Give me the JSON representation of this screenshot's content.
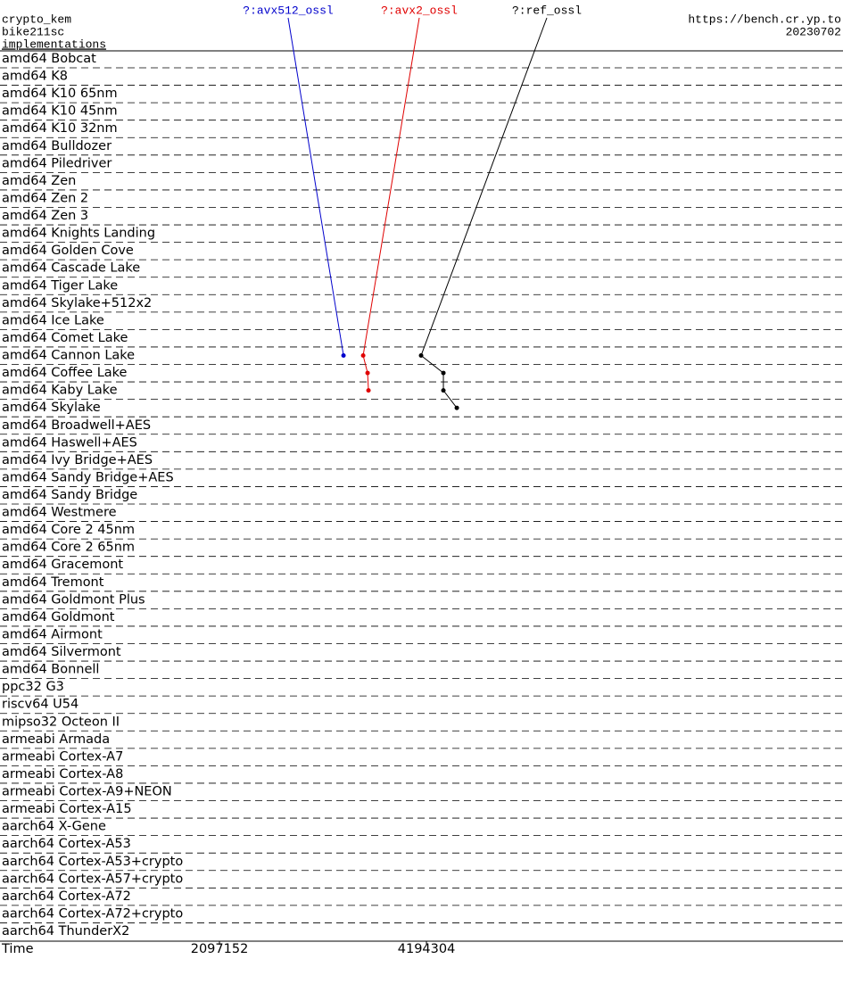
{
  "chart_data": {
    "type": "line",
    "header": [
      "crypto_kem",
      "bike211sc",
      "implementations"
    ],
    "site": "https://bench.cr.yp.to",
    "date": "20230702",
    "xlabel": "Time",
    "xlim": [
      0,
      8415000
    ],
    "xticks": [
      2097152,
      4194304
    ],
    "categories": [
      "amd64 Bobcat",
      "amd64 K8",
      "amd64 K10 65nm",
      "amd64 K10 45nm",
      "amd64 K10 32nm",
      "amd64 Bulldozer",
      "amd64 Piledriver",
      "amd64 Zen",
      "amd64 Zen 2",
      "amd64 Zen 3",
      "amd64 Knights Landing",
      "amd64 Golden Cove",
      "amd64 Cascade Lake",
      "amd64 Tiger Lake",
      "amd64 Skylake+512x2",
      "amd64 Ice Lake",
      "amd64 Comet Lake",
      "amd64 Cannon Lake",
      "amd64 Coffee Lake",
      "amd64 Kaby Lake",
      "amd64 Skylake",
      "amd64 Broadwell+AES",
      "amd64 Haswell+AES",
      "amd64 Ivy Bridge+AES",
      "amd64 Sandy Bridge+AES",
      "amd64 Sandy Bridge",
      "amd64 Westmere",
      "amd64 Core 2 45nm",
      "amd64 Core 2 65nm",
      "amd64 Gracemont",
      "amd64 Tremont",
      "amd64 Goldmont Plus",
      "amd64 Goldmont",
      "amd64 Airmont",
      "amd64 Silvermont",
      "amd64 Bonnell",
      "ppc32 G3",
      "riscv64 U54",
      "mipso32 Octeon II",
      "armeabi Armada",
      "armeabi Cortex-A7",
      "armeabi Cortex-A8",
      "armeabi Cortex-A9+NEON",
      "armeabi Cortex-A15",
      "aarch64 X-Gene",
      "aarch64 Cortex-A53",
      "aarch64 Cortex-A53+crypto",
      "aarch64 Cortex-A57+crypto",
      "aarch64 Cortex-A72",
      "aarch64 Cortex-A72+crypto",
      "aarch64 ThunderX2"
    ],
    "series": [
      {
        "name": "?:avx512_ossl",
        "color": "#0000cc",
        "values": [
          null,
          null,
          null,
          null,
          null,
          null,
          null,
          null,
          null,
          null,
          null,
          null,
          null,
          null,
          null,
          null,
          null,
          3354000,
          null,
          null,
          null,
          null,
          null,
          null,
          null,
          null,
          null,
          null,
          null,
          null,
          null,
          null,
          null,
          null,
          null,
          null,
          null,
          null,
          null,
          null,
          null,
          null,
          null,
          null,
          null,
          null,
          null,
          null,
          null,
          null,
          null
        ]
      },
      {
        "name": "?:avx2_ossl",
        "color": "#e00000",
        "values": [
          null,
          null,
          null,
          null,
          null,
          null,
          null,
          null,
          null,
          null,
          null,
          null,
          null,
          null,
          null,
          null,
          null,
          3553000,
          3598000,
          3607000,
          null,
          null,
          null,
          null,
          null,
          null,
          null,
          null,
          null,
          null,
          null,
          null,
          null,
          null,
          null,
          null,
          null,
          null,
          null,
          null,
          null,
          null,
          null,
          null,
          null,
          null,
          null,
          null,
          null,
          null,
          null
        ]
      },
      {
        "name": "?:ref_ossl",
        "color": "#000000",
        "values": [
          null,
          null,
          null,
          null,
          null,
          null,
          null,
          null,
          null,
          null,
          null,
          null,
          null,
          null,
          null,
          null,
          null,
          4140000,
          4366000,
          4366000,
          4502000,
          null,
          null,
          null,
          null,
          null,
          null,
          null,
          null,
          null,
          null,
          null,
          null,
          null,
          null,
          null,
          null,
          null,
          null,
          null,
          null,
          null,
          null,
          null,
          null,
          null,
          null,
          null,
          null,
          null,
          null
        ]
      }
    ]
  }
}
